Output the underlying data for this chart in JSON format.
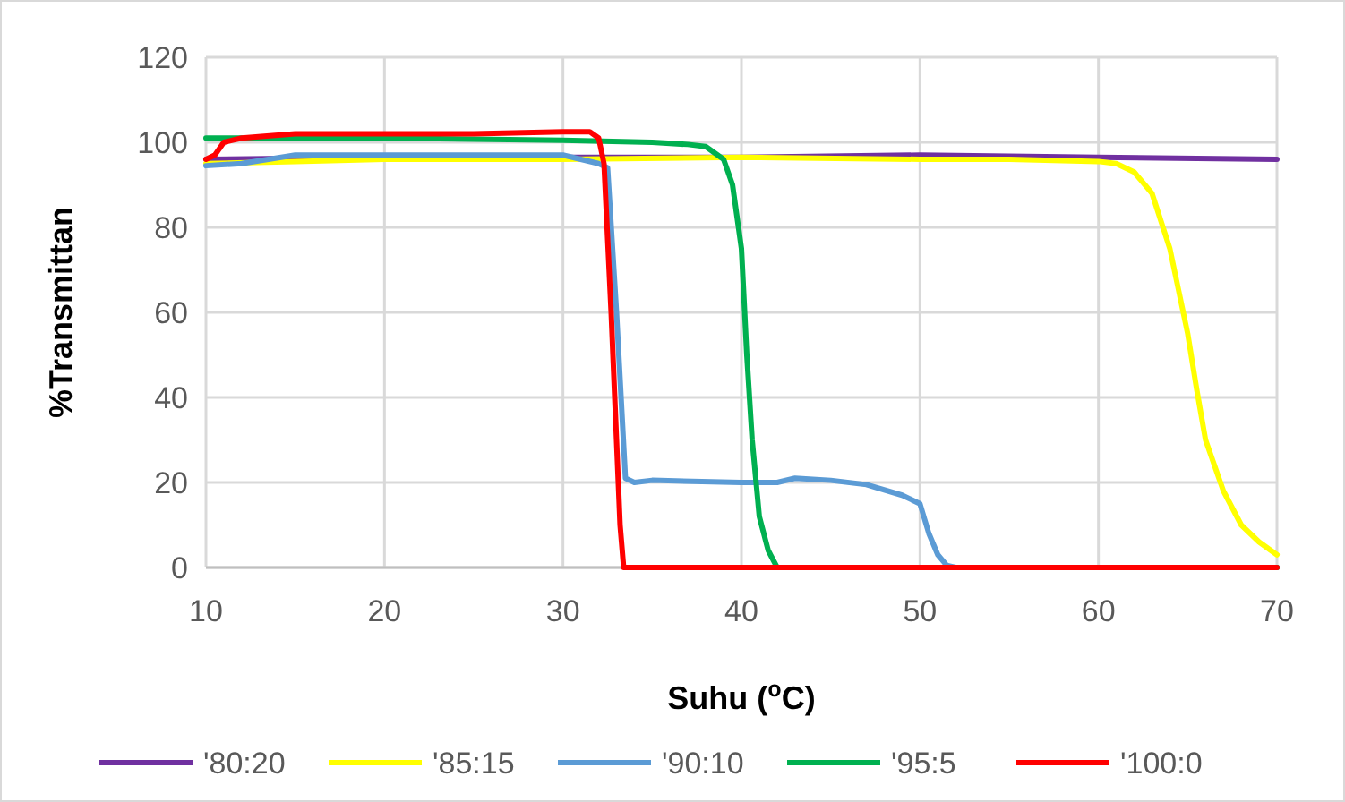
{
  "chart_data": {
    "type": "line",
    "xlabel": "Suhu ($^{o}$C)",
    "ylabel": "%Transmittan",
    "xlim": [
      10,
      70
    ],
    "xticks": [
      10,
      20,
      30,
      40,
      50,
      60,
      70
    ],
    "ylim": [
      0,
      120
    ],
    "yticks": [
      0,
      20,
      40,
      60,
      80,
      100,
      120
    ],
    "grid": true,
    "legend": "bottom",
    "line_style": "solid",
    "series": [
      {
        "name": "'80:20",
        "color": "#7030a0",
        "x": [
          10,
          20,
          30,
          40,
          50,
          60,
          70
        ],
        "values": [
          96,
          96.5,
          96.5,
          96.5,
          97,
          96.5,
          96
        ]
      },
      {
        "name": "'85:15",
        "color": "#ffff00",
        "x": [
          10,
          15,
          20,
          30,
          40,
          50,
          55,
          60,
          61,
          62,
          63,
          64,
          64.5,
          65,
          65.5,
          66,
          67,
          68,
          69,
          70
        ],
        "values": [
          95,
          95.5,
          96,
          96,
          96.5,
          96,
          96,
          95.5,
          95,
          93,
          88,
          75,
          65,
          55,
          42,
          30,
          18,
          10,
          6,
          3
        ]
      },
      {
        "name": "'90:10",
        "color": "#5b9bd5",
        "x": [
          10,
          12,
          15,
          20,
          30,
          31,
          32,
          32.5,
          33,
          33.5,
          34,
          35,
          40,
          42,
          43,
          45,
          47,
          49,
          50,
          50.5,
          51,
          51.5,
          52,
          70
        ],
        "values": [
          94.5,
          95,
          97,
          97,
          97,
          96,
          95,
          94,
          60,
          21,
          20,
          20.5,
          20,
          20,
          21,
          20.5,
          19.5,
          17,
          15,
          8,
          3,
          0.5,
          0,
          0
        ]
      },
      {
        "name": "'95:5",
        "color": "#00b050",
        "x": [
          10,
          20,
          30,
          35,
          37,
          38,
          39,
          39.5,
          40,
          40.3,
          40.6,
          41,
          41.5,
          42,
          70
        ],
        "values": [
          101,
          101,
          100.5,
          100,
          99.5,
          99,
          96,
          90,
          75,
          50,
          30,
          12,
          4,
          0,
          0
        ]
      },
      {
        "name": "'100:0",
        "color": "#ff0000",
        "x": [
          10,
          10.5,
          11,
          12,
          15,
          20,
          25,
          30,
          31.5,
          32,
          32.3,
          32.7,
          33,
          33.2,
          33.4,
          70
        ],
        "values": [
          96,
          97,
          100,
          101,
          102,
          102,
          102,
          102.5,
          102.5,
          101,
          95,
          60,
          30,
          10,
          0,
          0
        ]
      }
    ]
  }
}
